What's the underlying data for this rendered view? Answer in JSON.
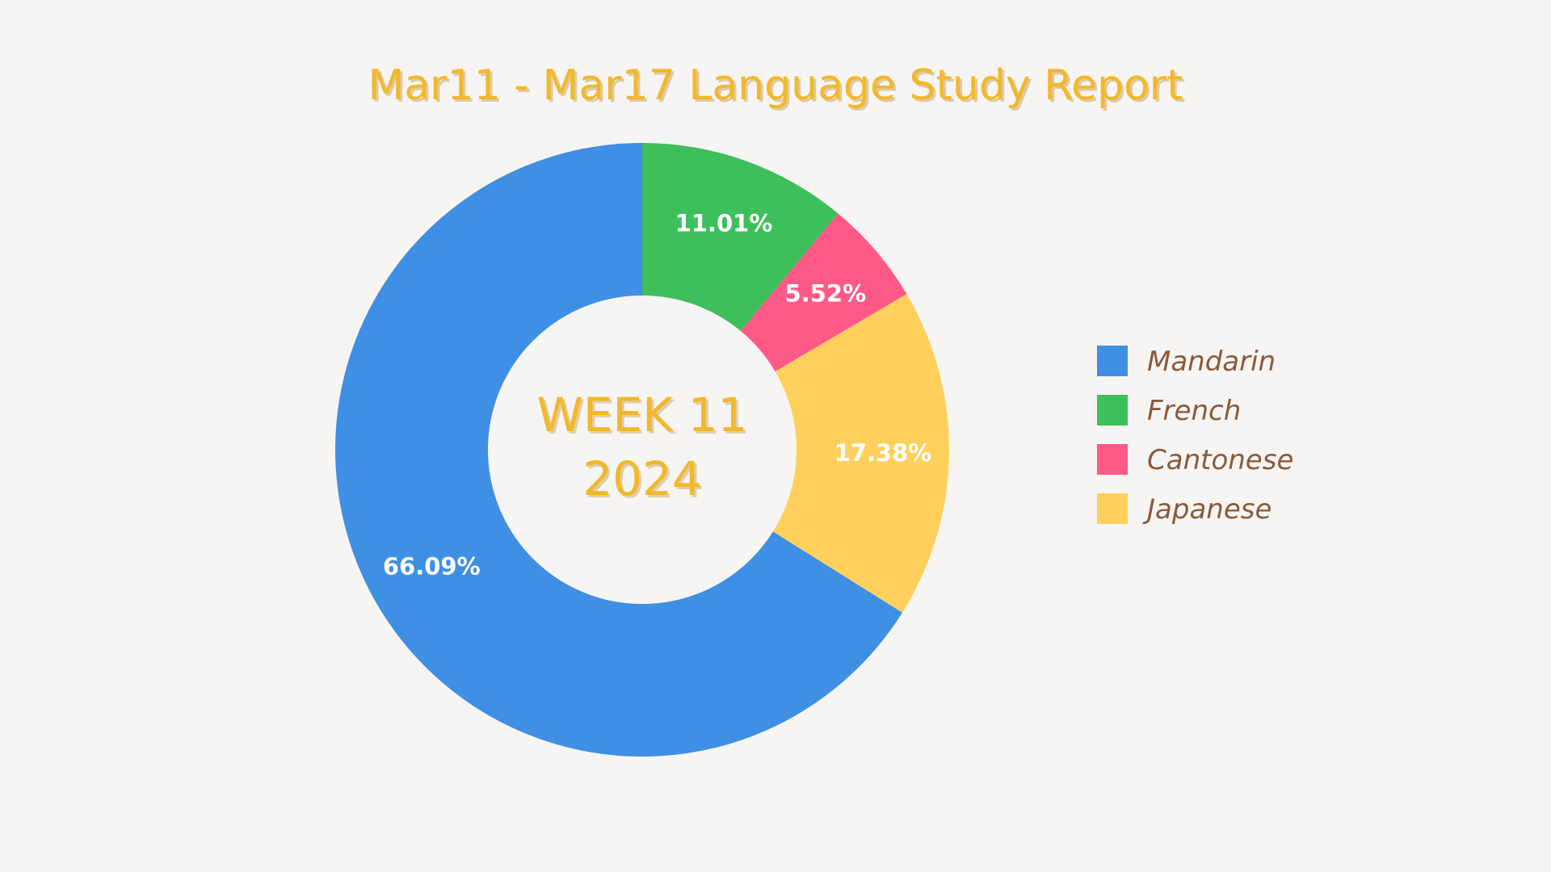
{
  "chart_data": {
    "type": "pie",
    "variant": "donut",
    "title": "Mar11 - Mar17  Language Study Report",
    "center_label": [
      "WEEK 11",
      "2024"
    ],
    "categories": [
      "Mandarin",
      "French",
      "Cantonese",
      "Japanese"
    ],
    "values": [
      66.09,
      11.01,
      5.52,
      17.38
    ],
    "value_labels": [
      "66.09%",
      "11.01%",
      "5.52%",
      "17.38%"
    ],
    "slice_order_clockwise_from_top": [
      "French",
      "Cantonese",
      "Japanese",
      "Mandarin"
    ],
    "colors": {
      "Mandarin": "#3f8fe4",
      "French": "#3dbf5c",
      "Cantonese": "#ff5a87",
      "Japanese": "#ffd05c"
    },
    "legend_placement": "right",
    "text_color": "#f2b82a",
    "legend_text_color": "#8a5a3a",
    "background": "#f7f5f3"
  }
}
